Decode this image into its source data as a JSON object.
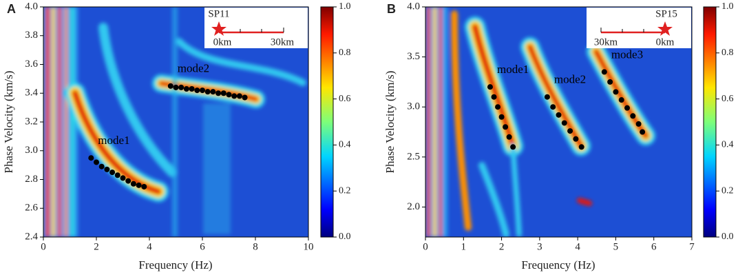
{
  "chart_data": [
    {
      "type": "scatter",
      "panel_label": "A",
      "xlabel": "Frequency (Hz)",
      "ylabel": "Phase Velocity (km/s)",
      "xlim": [
        0,
        10
      ],
      "xticks": [
        0,
        2,
        4,
        6,
        8,
        10
      ],
      "ylim": [
        2.4,
        4.0
      ],
      "yticks": [
        2.4,
        2.6,
        2.8,
        {
          "value": 3,
          "label": "3.0"
        },
        3.2,
        3.4,
        3.6,
        3.8,
        {
          "value": 4,
          "label": "4.0"
        }
      ],
      "colorbar": {
        "colormap": "jet",
        "lim": [
          0,
          1
        ],
        "ticks": [
          {
            "value": 0,
            "label": "0.0"
          },
          0.2,
          0.4,
          0.6,
          0.8,
          {
            "value": 1,
            "label": "1.0"
          }
        ]
      },
      "inset": {
        "station": "SP11",
        "scale_labels": [
          "0km",
          "30km"
        ]
      },
      "series": [
        {
          "name": "mode1",
          "color": "#000000",
          "x": [
            1.8,
            2.0,
            2.2,
            2.4,
            2.6,
            2.8,
            3.0,
            3.2,
            3.4,
            3.6,
            3.8
          ],
          "values": [
            2.95,
            2.92,
            2.89,
            2.87,
            2.85,
            2.83,
            2.81,
            2.79,
            2.77,
            2.76,
            2.75
          ]
        },
        {
          "name": "mode2",
          "color": "#000000",
          "x": [
            4.8,
            5.0,
            5.2,
            5.4,
            5.6,
            5.8,
            6.0,
            6.2,
            6.4,
            6.6,
            6.8,
            7.0,
            7.2,
            7.4,
            7.6
          ],
          "values": [
            3.45,
            3.44,
            3.44,
            3.43,
            3.43,
            3.42,
            3.42,
            3.41,
            3.41,
            3.4,
            3.4,
            3.39,
            3.38,
            3.38,
            3.37
          ]
        }
      ]
    },
    {
      "type": "scatter",
      "panel_label": "B",
      "xlabel": "Frequency (Hz)",
      "ylabel": "Phase Velocity (km/s)",
      "xlim": [
        0,
        7
      ],
      "xticks": [
        0,
        1,
        2,
        3,
        4,
        5,
        6,
        7
      ],
      "ylim": [
        1.7,
        4.0
      ],
      "yticks": [
        {
          "value": 2,
          "label": "2.0"
        },
        2.5,
        {
          "value": 3,
          "label": "3.0"
        },
        3.5,
        {
          "value": 4,
          "label": "4.0"
        }
      ],
      "colorbar": {
        "colormap": "jet",
        "lim": [
          0,
          1
        ],
        "ticks": [
          {
            "value": 0,
            "label": "0.0"
          },
          0.2,
          0.4,
          0.6,
          0.8,
          {
            "value": 1,
            "label": "1.0"
          }
        ]
      },
      "inset": {
        "station": "SP15",
        "scale_labels": [
          "30km",
          "0km"
        ]
      },
      "series": [
        {
          "name": "mode1",
          "color": "#000000",
          "x": [
            1.7,
            1.8,
            1.9,
            2.0,
            2.1,
            2.2,
            2.3
          ],
          "values": [
            3.2,
            3.1,
            3.0,
            2.9,
            2.8,
            2.7,
            2.6
          ]
        },
        {
          "name": "mode2",
          "color": "#000000",
          "x": [
            3.2,
            3.35,
            3.5,
            3.65,
            3.8,
            3.95,
            4.1
          ],
          "values": [
            3.1,
            3.0,
            2.92,
            2.84,
            2.76,
            2.68,
            2.6
          ]
        },
        {
          "name": "mode3",
          "color": "#000000",
          "x": [
            4.7,
            4.85,
            5.0,
            5.15,
            5.3,
            5.45,
            5.6,
            5.7
          ],
          "values": [
            3.35,
            3.25,
            3.15,
            3.07,
            2.99,
            2.91,
            2.83,
            2.75
          ]
        }
      ]
    }
  ]
}
